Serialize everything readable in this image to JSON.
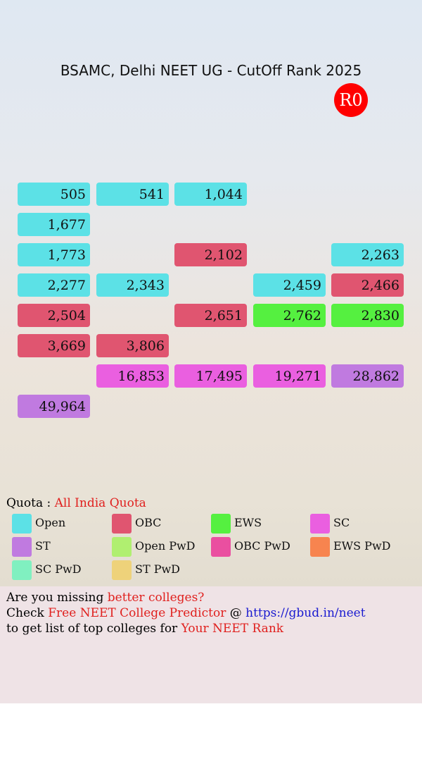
{
  "title": "BSAMC, Delhi NEET UG - CutOff Rank 2025",
  "round": "R0",
  "grid": [
    [
      {
        "label": "505",
        "color": "#5ce1e6"
      },
      {
        "label": "541",
        "color": "#5ce1e6"
      },
      {
        "label": "1,044",
        "color": "#5ce1e6"
      },
      null,
      null
    ],
    [
      {
        "label": "1,677",
        "color": "#5ce1e6"
      },
      null,
      null,
      null,
      null
    ],
    [
      {
        "label": "1,773",
        "color": "#5ce1e6"
      },
      null,
      {
        "label": "2,102",
        "color": "#e05570"
      },
      null,
      {
        "label": "2,263",
        "color": "#5ce1e6"
      }
    ],
    [
      {
        "label": "2,277",
        "color": "#5ce1e6"
      },
      {
        "label": "2,343",
        "color": "#5ce1e6"
      },
      null,
      {
        "label": "2,459",
        "color": "#5ce1e6"
      },
      {
        "label": "2,466",
        "color": "#e05570"
      }
    ],
    [
      {
        "label": "2,504",
        "color": "#e05570"
      },
      null,
      {
        "label": "2,651",
        "color": "#e05570"
      },
      {
        "label": "2,762",
        "color": "#55f040"
      },
      {
        "label": "2,830",
        "color": "#55f040"
      }
    ],
    [
      {
        "label": "3,669",
        "color": "#e05570"
      },
      {
        "label": "3,806",
        "color": "#e05570"
      },
      null,
      null,
      null
    ],
    [
      null,
      {
        "label": "16,853",
        "color": "#ea5fe0"
      },
      {
        "label": "17,495",
        "color": "#ea5fe0"
      },
      {
        "label": "19,271",
        "color": "#ea5fe0"
      },
      {
        "label": "28,862",
        "color": "#c07ae0"
      }
    ],
    [
      {
        "label": "49,964",
        "color": "#c07ae0"
      },
      null,
      null,
      null,
      null
    ]
  ],
  "quota": {
    "label": "Quota : ",
    "value": "All India Quota"
  },
  "legend": [
    {
      "name": "Open",
      "color": "#5ce1e6"
    },
    {
      "name": "OBC",
      "color": "#e05570"
    },
    {
      "name": "EWS",
      "color": "#55f040"
    },
    {
      "name": "SC",
      "color": "#ea5fe0"
    },
    {
      "name": "ST",
      "color": "#c07ae0"
    },
    {
      "name": "Open PwD",
      "color": "#b0ef70"
    },
    {
      "name": "OBC PwD",
      "color": "#ea4fa0"
    },
    {
      "name": "EWS PwD",
      "color": "#f7844f"
    },
    {
      "name": "SC PwD",
      "color": "#80f0c0"
    },
    {
      "name": "ST PwD",
      "color": "#eed27a"
    }
  ],
  "footer": [
    [
      {
        "text": "Are you missing ",
        "color": "#000000"
      },
      {
        "text": "better colleges?",
        "color": "#e0201e"
      }
    ],
    [
      {
        "text": "Check ",
        "color": "#000000"
      },
      {
        "text": "Free NEET College Predictor",
        "color": "#e0201e"
      },
      {
        "text": " @ ",
        "color": "#000000"
      },
      {
        "text": "https://gbud.in/neet",
        "color": "#1a1ad0"
      }
    ],
    [
      {
        "text": "to get list of top colleges for ",
        "color": "#000000"
      },
      {
        "text": "Your NEET Rank",
        "color": "#e0201e"
      }
    ]
  ]
}
